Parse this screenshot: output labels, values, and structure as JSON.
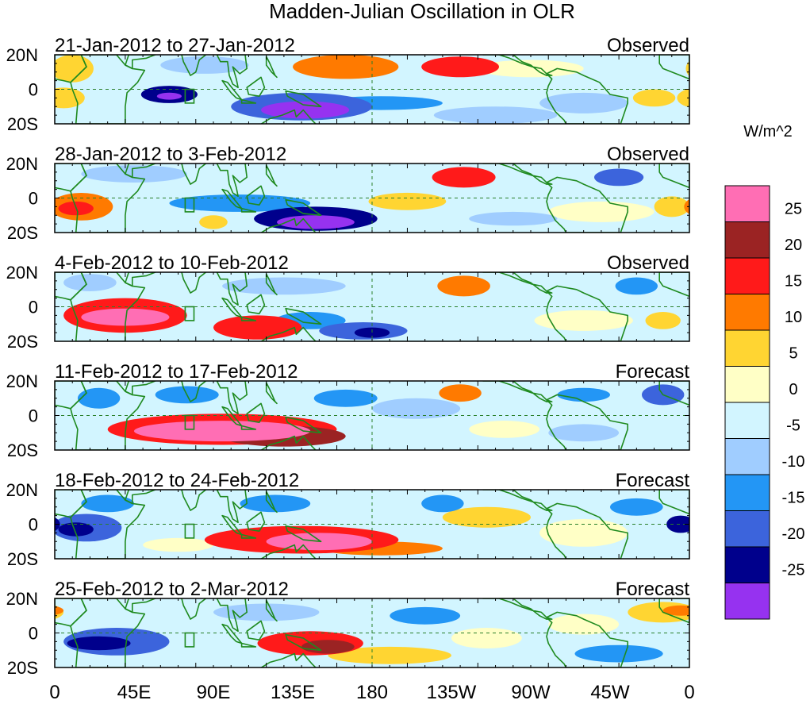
{
  "chart_data": {
    "type": "heatmap",
    "title": "Madden-Julian Oscillation in OLR",
    "colorbar": {
      "label": "W/m^2",
      "tick_labels": [
        "25",
        "20",
        "15",
        "10",
        "5",
        "0",
        "-5",
        "-10",
        "-15",
        "-20",
        "-25"
      ],
      "colors": [
        "#ff6eb4",
        "#9b2323",
        "#ff1a1a",
        "#ff7a00",
        "#ffd532",
        "#ffffc6",
        "#d2f5ff",
        "#a0cdff",
        "#2396f5",
        "#3c64dc",
        "#00008c",
        "#9632f0"
      ],
      "bins": [
        ">25",
        "20 to 25",
        "15 to 20",
        "10 to 15",
        "5 to 10",
        "0 to 5",
        "-5 to 0",
        "-10 to -5",
        "-15 to -10",
        "-20 to -15",
        "-25 to -20",
        "<-25"
      ]
    },
    "x_axis": {
      "tick_labels": [
        "0",
        "45E",
        "90E",
        "135E",
        "180",
        "135W",
        "90W",
        "45W",
        "0"
      ],
      "lon_range": [
        0,
        360
      ]
    },
    "y_axis": {
      "tick_labels": [
        "20N",
        "0",
        "20S"
      ],
      "lat_range": [
        -20,
        20
      ]
    },
    "panels": [
      {
        "period": "21-Jan-2012 to 27-Jan-2012",
        "status": "Observed",
        "anomalies": [
          {
            "lon": 10,
            "lat": 12,
            "rx": 12,
            "ry": 8,
            "value": 7
          },
          {
            "lon": 5,
            "lat": -5,
            "rx": 12,
            "ry": 6,
            "value": 6
          },
          {
            "lon": 65,
            "lat": -3,
            "rx": 16,
            "ry": 5,
            "value": -20
          },
          {
            "lon": 65,
            "lat": -4,
            "rx": 7,
            "ry": 2,
            "value": -28
          },
          {
            "lon": 140,
            "lat": -10,
            "rx": 40,
            "ry": 8,
            "value": -15
          },
          {
            "lon": 142,
            "lat": -12,
            "rx": 25,
            "ry": 5,
            "value": -28
          },
          {
            "lon": 185,
            "lat": -8,
            "rx": 35,
            "ry": 4,
            "value": -13
          },
          {
            "lon": 165,
            "lat": 13,
            "rx": 30,
            "ry": 7,
            "value": 12
          },
          {
            "lon": 230,
            "lat": 13,
            "rx": 22,
            "ry": 6,
            "value": 18
          },
          {
            "lon": 250,
            "lat": -15,
            "rx": 35,
            "ry": 5,
            "value": -8
          },
          {
            "lon": 300,
            "lat": -8,
            "rx": 25,
            "ry": 6,
            "value": -8
          },
          {
            "lon": 340,
            "lat": -5,
            "rx": 12,
            "ry": 5,
            "value": 8
          },
          {
            "lon": 85,
            "lat": 14,
            "rx": 25,
            "ry": 5,
            "value": -6
          },
          {
            "lon": 270,
            "lat": 12,
            "rx": 30,
            "ry": 5,
            "value": 4
          }
        ]
      },
      {
        "period": "28-Jan-2012 to 3-Feb-2012",
        "status": "Observed",
        "anomalies": [
          {
            "lon": 15,
            "lat": -5,
            "rx": 18,
            "ry": 8,
            "value": 14
          },
          {
            "lon": 12,
            "lat": -6,
            "rx": 10,
            "ry": 4,
            "value": 18
          },
          {
            "lon": 45,
            "lat": 14,
            "rx": 30,
            "ry": 5,
            "value": -8
          },
          {
            "lon": 105,
            "lat": -3,
            "rx": 40,
            "ry": 5,
            "value": -12
          },
          {
            "lon": 148,
            "lat": -12,
            "rx": 35,
            "ry": 7,
            "value": -20
          },
          {
            "lon": 148,
            "lat": -14,
            "rx": 22,
            "ry": 4,
            "value": -28
          },
          {
            "lon": 90,
            "lat": -14,
            "rx": 8,
            "ry": 4,
            "value": 10
          },
          {
            "lon": 232,
            "lat": 12,
            "rx": 18,
            "ry": 6,
            "value": 18
          },
          {
            "lon": 200,
            "lat": -2,
            "rx": 22,
            "ry": 5,
            "value": 6
          },
          {
            "lon": 320,
            "lat": 12,
            "rx": 14,
            "ry": 5,
            "value": -15
          },
          {
            "lon": 310,
            "lat": -8,
            "rx": 30,
            "ry": 6,
            "value": 3
          },
          {
            "lon": 350,
            "lat": -5,
            "rx": 10,
            "ry": 6,
            "value": 8
          },
          {
            "lon": 260,
            "lat": -12,
            "rx": 25,
            "ry": 4,
            "value": -6
          }
        ]
      },
      {
        "period": "4-Feb-2012 to 10-Feb-2012",
        "status": "Observed",
        "anomalies": [
          {
            "lon": 40,
            "lat": -5,
            "rx": 35,
            "ry": 10,
            "value": 18
          },
          {
            "lon": 40,
            "lat": -6,
            "rx": 25,
            "ry": 5,
            "value": 28
          },
          {
            "lon": 115,
            "lat": -12,
            "rx": 25,
            "ry": 7,
            "value": 18
          },
          {
            "lon": 145,
            "lat": -8,
            "rx": 20,
            "ry": 5,
            "value": -10
          },
          {
            "lon": 175,
            "lat": -14,
            "rx": 25,
            "ry": 5,
            "value": -18
          },
          {
            "lon": 180,
            "lat": -15,
            "rx": 10,
            "ry": 3,
            "value": -24
          },
          {
            "lon": 232,
            "lat": 12,
            "rx": 15,
            "ry": 6,
            "value": 14
          },
          {
            "lon": 130,
            "lat": 12,
            "rx": 35,
            "ry": 5,
            "value": -8
          },
          {
            "lon": 20,
            "lat": 14,
            "rx": 15,
            "ry": 5,
            "value": -6
          },
          {
            "lon": 330,
            "lat": 12,
            "rx": 12,
            "ry": 5,
            "value": -14
          },
          {
            "lon": 300,
            "lat": -8,
            "rx": 28,
            "ry": 6,
            "value": 4
          },
          {
            "lon": 345,
            "lat": -8,
            "rx": 10,
            "ry": 5,
            "value": 8
          }
        ]
      },
      {
        "period": "11-Feb-2012 to 17-Feb-2012",
        "status": "Forecast",
        "anomalies": [
          {
            "lon": 95,
            "lat": -8,
            "rx": 65,
            "ry": 9,
            "value": 18
          },
          {
            "lon": 95,
            "lat": -9,
            "rx": 50,
            "ry": 6,
            "value": 28
          },
          {
            "lon": 130,
            "lat": -12,
            "rx": 35,
            "ry": 6,
            "value": 24
          },
          {
            "lon": 25,
            "lat": 10,
            "rx": 12,
            "ry": 6,
            "value": -10
          },
          {
            "lon": 75,
            "lat": 12,
            "rx": 18,
            "ry": 5,
            "value": -12
          },
          {
            "lon": 165,
            "lat": 10,
            "rx": 18,
            "ry": 5,
            "value": -12
          },
          {
            "lon": 205,
            "lat": 4,
            "rx": 25,
            "ry": 6,
            "value": -8
          },
          {
            "lon": 230,
            "lat": 13,
            "rx": 12,
            "ry": 5,
            "value": 12
          },
          {
            "lon": 255,
            "lat": -8,
            "rx": 20,
            "ry": 5,
            "value": 4
          },
          {
            "lon": 300,
            "lat": 12,
            "rx": 15,
            "ry": 4,
            "value": -10
          },
          {
            "lon": 345,
            "lat": 12,
            "rx": 12,
            "ry": 6,
            "value": -15
          },
          {
            "lon": 300,
            "lat": -10,
            "rx": 20,
            "ry": 5,
            "value": -6
          }
        ]
      },
      {
        "period": "18-Feb-2012 to 24-Feb-2012",
        "status": "Forecast",
        "anomalies": [
          {
            "lon": 140,
            "lat": -9,
            "rx": 55,
            "ry": 8,
            "value": 18
          },
          {
            "lon": 150,
            "lat": -10,
            "rx": 30,
            "ry": 5,
            "value": 28
          },
          {
            "lon": 185,
            "lat": -14,
            "rx": 35,
            "ry": 4,
            "value": 12
          },
          {
            "lon": 18,
            "lat": -2,
            "rx": 20,
            "ry": 8,
            "value": -15
          },
          {
            "lon": 12,
            "lat": -3,
            "rx": 10,
            "ry": 4,
            "value": -24
          },
          {
            "lon": 30,
            "lat": 12,
            "rx": 15,
            "ry": 5,
            "value": -10
          },
          {
            "lon": 125,
            "lat": 12,
            "rx": 20,
            "ry": 5,
            "value": -12
          },
          {
            "lon": 220,
            "lat": 12,
            "rx": 12,
            "ry": 5,
            "value": -10
          },
          {
            "lon": 245,
            "lat": 4,
            "rx": 25,
            "ry": 6,
            "value": 6
          },
          {
            "lon": 300,
            "lat": -5,
            "rx": 25,
            "ry": 8,
            "value": 5
          },
          {
            "lon": 330,
            "lat": 10,
            "rx": 15,
            "ry": 5,
            "value": -14
          },
          {
            "lon": 355,
            "lat": 0,
            "rx": 8,
            "ry": 5,
            "value": -20
          },
          {
            "lon": 70,
            "lat": -12,
            "rx": 20,
            "ry": 4,
            "value": 4
          }
        ]
      },
      {
        "period": "25-Feb-2012 to 2-Mar-2012",
        "status": "Forecast",
        "anomalies": [
          {
            "lon": 35,
            "lat": -5,
            "rx": 30,
            "ry": 8,
            "value": -15
          },
          {
            "lon": 25,
            "lat": -6,
            "rx": 18,
            "ry": 4,
            "value": -24
          },
          {
            "lon": 145,
            "lat": -6,
            "rx": 30,
            "ry": 7,
            "value": 16
          },
          {
            "lon": 155,
            "lat": -8,
            "rx": 15,
            "ry": 4,
            "value": 22
          },
          {
            "lon": 190,
            "lat": -13,
            "rx": 35,
            "ry": 5,
            "value": 10
          },
          {
            "lon": 120,
            "lat": 12,
            "rx": 30,
            "ry": 5,
            "value": -6
          },
          {
            "lon": 210,
            "lat": 10,
            "rx": 20,
            "ry": 5,
            "value": -10
          },
          {
            "lon": 245,
            "lat": -3,
            "rx": 20,
            "ry": 6,
            "value": 4
          },
          {
            "lon": 320,
            "lat": -12,
            "rx": 25,
            "ry": 5,
            "value": -10
          },
          {
            "lon": 345,
            "lat": 12,
            "rx": 20,
            "ry": 6,
            "value": 10
          },
          {
            "lon": 355,
            "lat": 13,
            "rx": 10,
            "ry": 3,
            "value": 14
          },
          {
            "lon": 300,
            "lat": 5,
            "rx": 20,
            "ry": 6,
            "value": 4
          }
        ]
      }
    ]
  }
}
